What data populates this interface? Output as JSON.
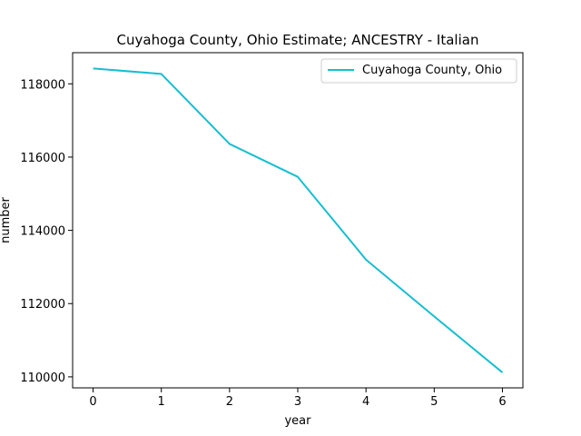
{
  "chart_data": {
    "type": "line",
    "title": "Cuyahoga County, Ohio Estimate; ANCESTRY - Italian",
    "xlabel": "year",
    "ylabel": "number",
    "x": [
      0,
      1,
      2,
      3,
      4,
      5,
      6
    ],
    "xlim": [
      -0.3,
      6.3
    ],
    "ylim": [
      109700,
      118850
    ],
    "xticks": [
      0,
      1,
      2,
      3,
      4,
      5,
      6
    ],
    "yticks": [
      110000,
      112000,
      114000,
      116000,
      118000
    ],
    "grid": false,
    "legend_position": "top-right",
    "series": [
      {
        "name": "Cuyahoga County, Ohio",
        "color": "#17becf",
        "values": [
          118420,
          118270,
          116360,
          115460,
          113200,
          111650,
          110120
        ]
      }
    ]
  }
}
